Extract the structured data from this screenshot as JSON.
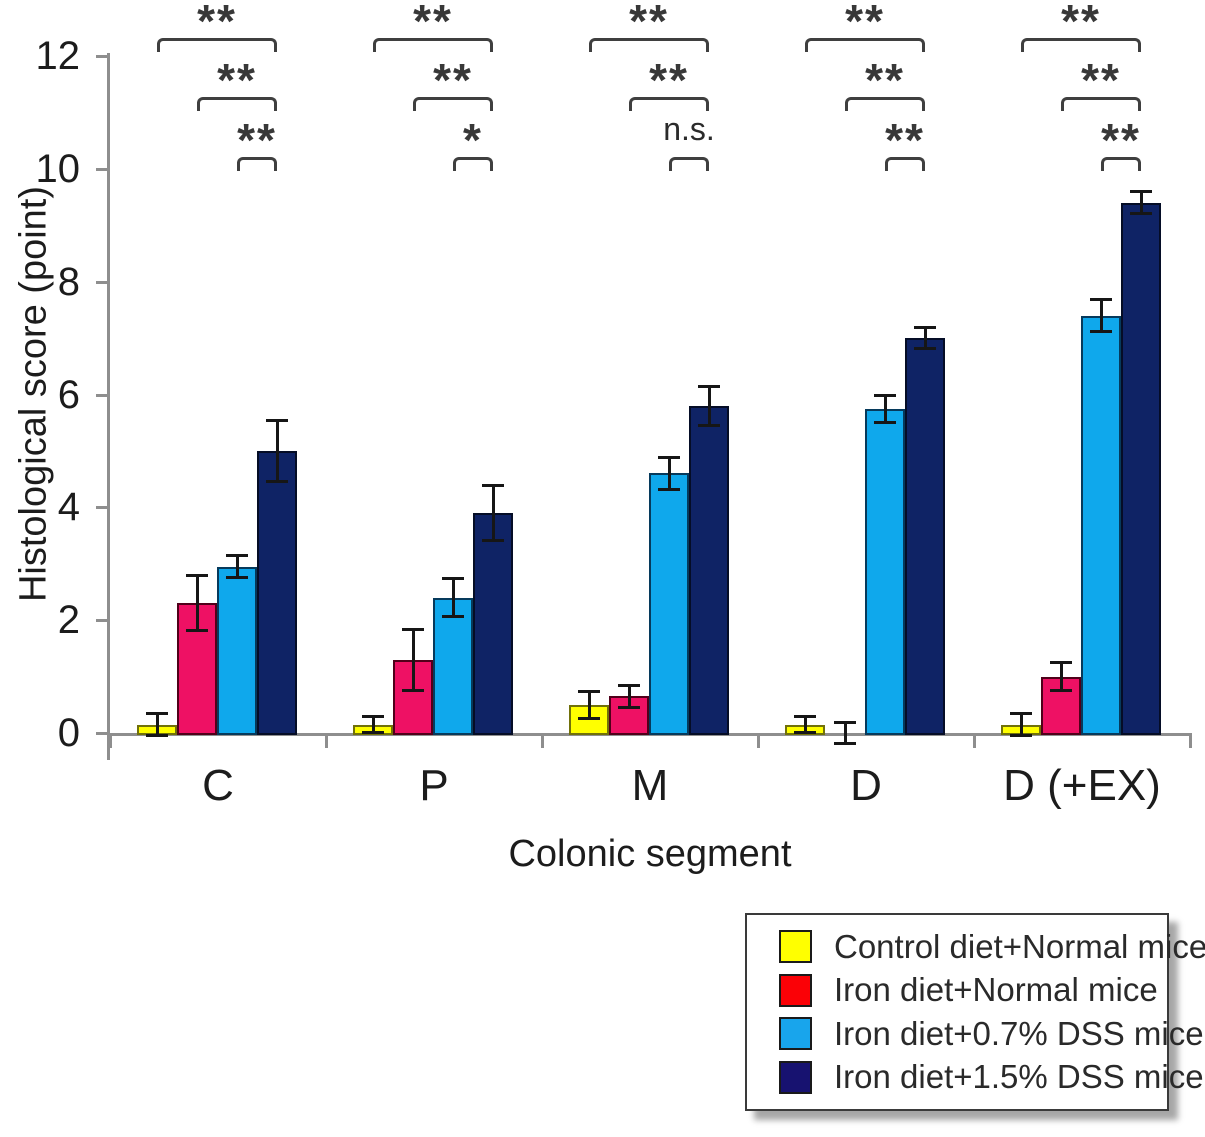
{
  "chart_data": {
    "type": "bar",
    "title": "",
    "xlabel": "Colonic segment",
    "ylabel": "Histological score (point)",
    "ylim": [
      0,
      12
    ],
    "yticks": [
      0,
      2,
      4,
      6,
      8,
      10,
      12
    ],
    "grid": false,
    "categories": [
      "C",
      "P",
      "M",
      "D",
      "D (+EX)"
    ],
    "series": [
      {
        "name": "Control diet+Normal mice",
        "color": "#FFFF00",
        "border": "#71710a",
        "values": [
          0.15,
          0.15,
          0.5,
          0.15,
          0.15
        ],
        "errors": [
          0.2,
          0.15,
          0.25,
          0.15,
          0.2
        ]
      },
      {
        "name": "Iron diet+Normal mice",
        "color": "#EE1164",
        "border": "#50001a",
        "values": [
          2.3,
          1.3,
          0.65,
          0,
          1.0
        ],
        "errors": [
          0.5,
          0.55,
          0.2,
          0.2,
          0.25
        ]
      },
      {
        "name": "Iron diet+0.7% DSS mice",
        "color": "#0FA8EC",
        "border": "#063a5c",
        "values": [
          2.95,
          2.4,
          4.6,
          5.75,
          7.4
        ],
        "errors": [
          0.2,
          0.35,
          0.3,
          0.25,
          0.3
        ]
      },
      {
        "name": "Iron diet+1.5% DSS mice",
        "color": "#0F2365",
        "border": "#050d26",
        "values": [
          5.0,
          3.9,
          5.8,
          7.0,
          9.4
        ],
        "errors": [
          0.55,
          0.5,
          0.35,
          0.2,
          0.2
        ]
      }
    ],
    "significance": {
      "pairs": [
        [
          0,
          3
        ],
        [
          1,
          3
        ],
        [
          2,
          3
        ]
      ],
      "labels": [
        [
          "**",
          "**",
          "**"
        ],
        [
          "**",
          "**",
          "*"
        ],
        [
          "**",
          "**",
          "n.s."
        ],
        [
          "**",
          "**",
          "**"
        ],
        [
          "**",
          "**",
          "**"
        ]
      ]
    },
    "legend": {
      "position": "bottom-right",
      "entries": [
        {
          "label": "Control diet+Normal mice",
          "color": "#FFFF00"
        },
        {
          "label": "Iron diet+Normal mice",
          "color": "#FB0106"
        },
        {
          "label": "Iron diet+0.7% DSS mice",
          "color": "#18A5EC"
        },
        {
          "label": "Iron diet+1.5% DSS mice",
          "color": "#171270"
        }
      ]
    }
  }
}
